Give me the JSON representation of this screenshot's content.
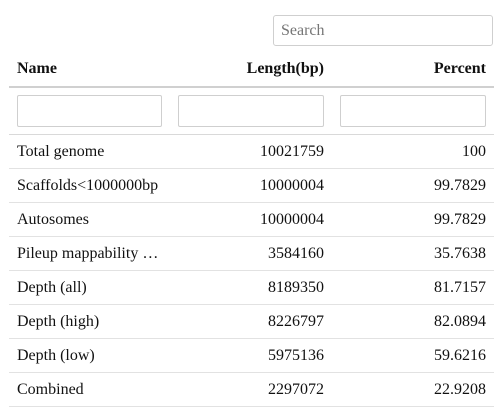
{
  "search": {
    "placeholder": "Search",
    "value": ""
  },
  "table": {
    "headers": [
      "Name",
      "Length(bp)",
      "Percent"
    ],
    "filters": [
      "",
      "",
      ""
    ],
    "rows": [
      {
        "name": "Total genome",
        "length": "10021759",
        "percent": "100"
      },
      {
        "name": "Scaffolds<1000000bp",
        "length": "10000004",
        "percent": "99.7829"
      },
      {
        "name": "Autosomes",
        "length": "10000004",
        "percent": "99.7829"
      },
      {
        "name": "Pileup mappability …",
        "length": "3584160",
        "percent": "35.7638"
      },
      {
        "name": "Depth (all)",
        "length": "8189350",
        "percent": "81.7157"
      },
      {
        "name": "Depth (high)",
        "length": "8226797",
        "percent": "82.0894"
      },
      {
        "name": "Depth (low)",
        "length": "5975136",
        "percent": "59.6216"
      },
      {
        "name": "Combined",
        "length": "2297072",
        "percent": "22.9208"
      }
    ]
  }
}
